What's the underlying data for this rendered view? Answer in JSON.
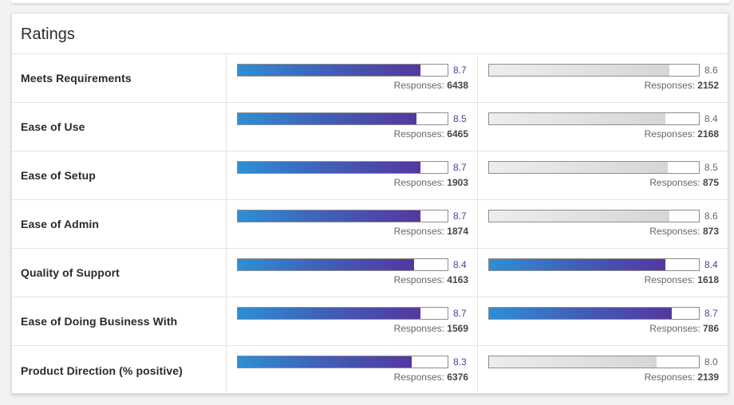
{
  "title": "Ratings",
  "responses_label": "Responses: ",
  "colors": {
    "primary_start": "#2e8fd6",
    "primary_end": "#55379f",
    "score_purple": "#55389f",
    "grey": "#d6d6d6"
  },
  "rows": [
    {
      "label": "Meets Requirements",
      "left": {
        "score": "8.7",
        "responses": "6438",
        "fill_percent": 87,
        "style": "primary"
      },
      "right": {
        "score": "8.6",
        "responses": "2152",
        "fill_percent": 86,
        "style": "grey"
      }
    },
    {
      "label": "Ease of Use",
      "left": {
        "score": "8.5",
        "responses": "6465",
        "fill_percent": 85,
        "style": "primary"
      },
      "right": {
        "score": "8.4",
        "responses": "2168",
        "fill_percent": 84,
        "style": "grey"
      }
    },
    {
      "label": "Ease of Setup",
      "left": {
        "score": "8.7",
        "responses": "1903",
        "fill_percent": 87,
        "style": "primary"
      },
      "right": {
        "score": "8.5",
        "responses": "875",
        "fill_percent": 85,
        "style": "grey"
      }
    },
    {
      "label": "Ease of Admin",
      "left": {
        "score": "8.7",
        "responses": "1874",
        "fill_percent": 87,
        "style": "primary"
      },
      "right": {
        "score": "8.6",
        "responses": "873",
        "fill_percent": 86,
        "style": "grey"
      }
    },
    {
      "label": "Quality of Support",
      "left": {
        "score": "8.4",
        "responses": "4163",
        "fill_percent": 84,
        "style": "primary"
      },
      "right": {
        "score": "8.4",
        "responses": "1618",
        "fill_percent": 84,
        "style": "primary"
      }
    },
    {
      "label": "Ease of Doing Business With",
      "left": {
        "score": "8.7",
        "responses": "1569",
        "fill_percent": 87,
        "style": "primary"
      },
      "right": {
        "score": "8.7",
        "responses": "786",
        "fill_percent": 87,
        "style": "primary"
      }
    },
    {
      "label": "Product Direction (% positive)",
      "left": {
        "score": "8.3",
        "responses": "6376",
        "fill_percent": 83,
        "style": "primary"
      },
      "right": {
        "score": "8.0",
        "responses": "2139",
        "fill_percent": 80,
        "style": "grey"
      }
    }
  ]
}
